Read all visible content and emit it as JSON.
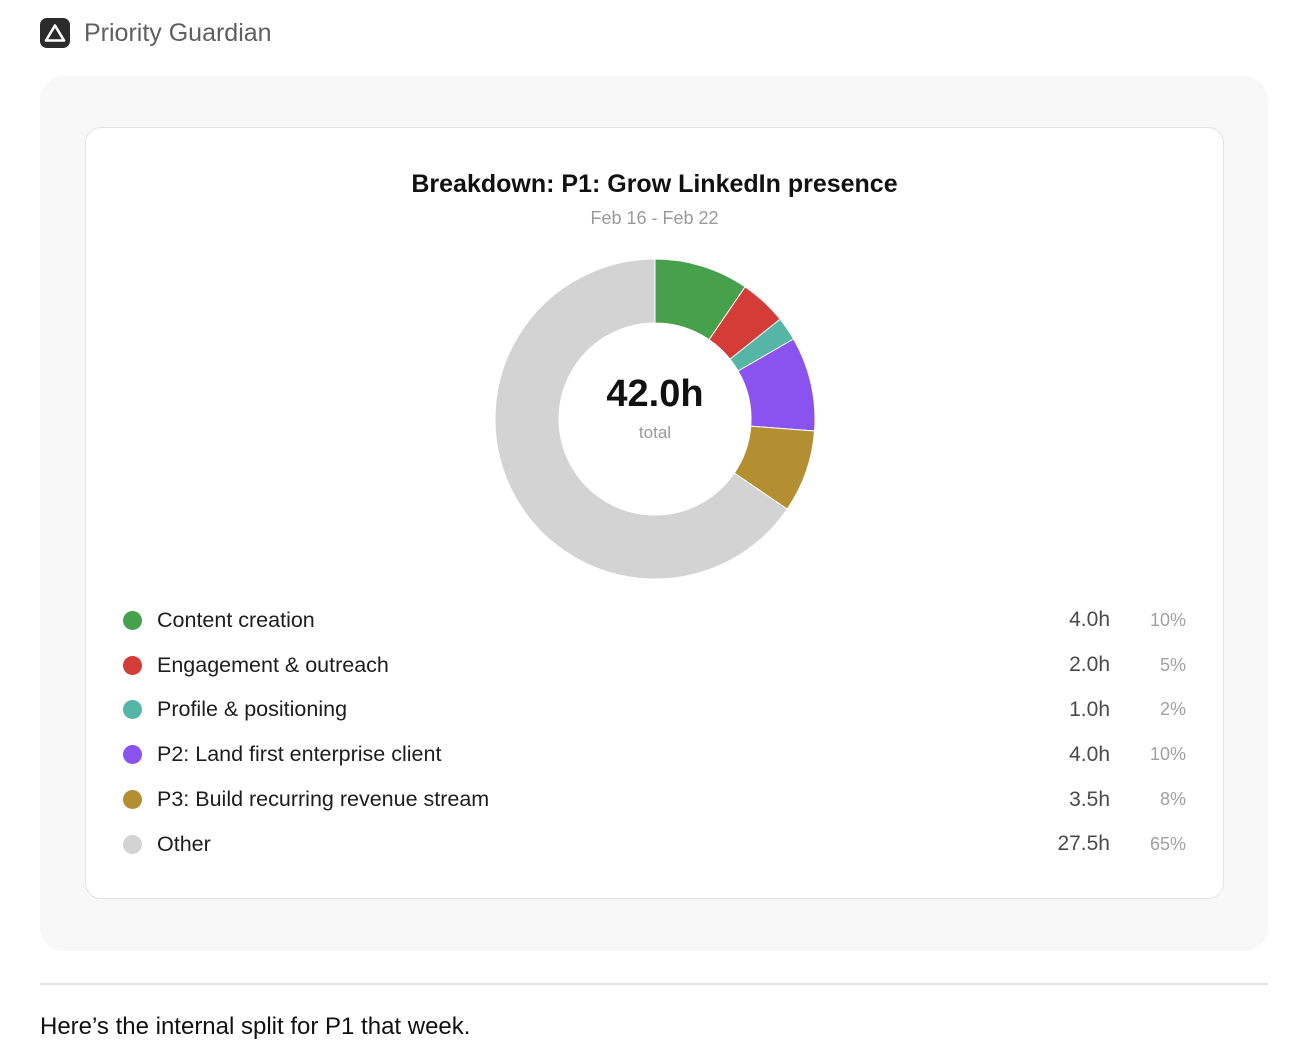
{
  "app": {
    "title": "Priority Guardian",
    "logo_icon": "triangle-logo-icon"
  },
  "chart_data": {
    "type": "pie",
    "style": "donut",
    "title": "Breakdown: P1: Grow LinkedIn presence",
    "subtitle": "Feb 16 - Feb 22",
    "center_value": "42.0h",
    "center_label": "total",
    "total_hours": 42.0,
    "categories": [
      "Content creation",
      "Engagement & outreach",
      "Profile & positioning",
      "P2: Land first enterprise client",
      "P3: Build recurring revenue stream",
      "Other"
    ],
    "values": [
      4.0,
      2.0,
      1.0,
      4.0,
      3.5,
      27.5
    ],
    "slices": [
      {
        "label": "Content creation",
        "value": 4.0,
        "hours": "4.0h",
        "percent": "10%",
        "color": "#46a04c"
      },
      {
        "label": "Engagement & outreach",
        "value": 2.0,
        "hours": "2.0h",
        "percent": "5%",
        "color": "#d43c37"
      },
      {
        "label": "Profile & positioning",
        "value": 1.0,
        "hours": "1.0h",
        "percent": "2%",
        "color": "#55b5a6"
      },
      {
        "label": "P2: Land first enterprise client",
        "value": 4.0,
        "hours": "4.0h",
        "percent": "10%",
        "color": "#8a52ef"
      },
      {
        "label": "P3: Build recurring revenue stream",
        "value": 3.5,
        "hours": "3.5h",
        "percent": "8%",
        "color": "#b38f32"
      },
      {
        "label": "Other",
        "value": 27.5,
        "hours": "27.5h",
        "percent": "65%",
        "color": "#d3d3d3"
      }
    ],
    "legend_position": "bottom"
  },
  "message": {
    "text": "Here’s the internal split for P1 that week."
  }
}
